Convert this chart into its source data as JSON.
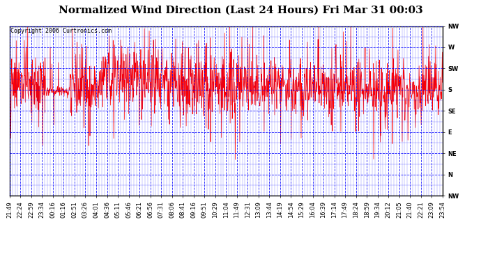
{
  "title": "Normalized Wind Direction (Last 24 Hours) Fri Mar 31 00:03",
  "copyright": "Copyright 2006 Curtronics.com",
  "ylabel_ticks": [
    "NW",
    "W",
    "SW",
    "S",
    "SE",
    "E",
    "NE",
    "N",
    "NW"
  ],
  "ylabel_values": [
    8,
    7,
    6,
    5,
    4,
    3,
    2,
    1,
    0
  ],
  "xtick_labels": [
    "21:49",
    "22:24",
    "22:59",
    "23:34",
    "00:16",
    "01:16",
    "02:51",
    "03:26",
    "04:01",
    "04:36",
    "05:11",
    "05:46",
    "06:21",
    "06:56",
    "07:31",
    "08:06",
    "08:41",
    "09:16",
    "09:51",
    "10:29",
    "11:04",
    "11:49",
    "12:31",
    "13:09",
    "13:44",
    "14:19",
    "14:54",
    "15:29",
    "16:04",
    "16:39",
    "17:14",
    "17:49",
    "18:24",
    "18:59",
    "19:34",
    "20:12",
    "21:05",
    "21:40",
    "22:21",
    "23:09",
    "23:54"
  ],
  "line_color": "#FF0000",
  "grid_color": "#0000FF",
  "background_color": "#FFFFFF",
  "title_fontsize": 11,
  "copyright_fontsize": 6,
  "tick_fontsize": 6,
  "seed": 42,
  "n_points": 1440,
  "s_value": 5,
  "figwidth": 6.9,
  "figheight": 3.75,
  "dpi": 100
}
